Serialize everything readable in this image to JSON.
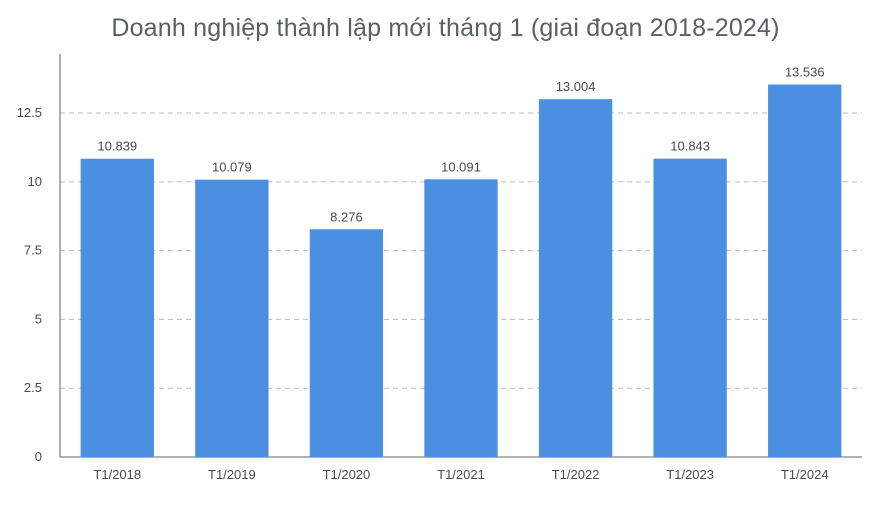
{
  "chart_data": {
    "type": "bar",
    "title": "Doanh nghiệp thành lập mới tháng 1 (giai đoạn 2018-2024)",
    "categories": [
      "T1/2018",
      "T1/2019",
      "T1/2020",
      "T1/2021",
      "T1/2022",
      "T1/2023",
      "T1/2024"
    ],
    "values": [
      10.839,
      10.079,
      8.276,
      10.091,
      13.004,
      10.843,
      13.536
    ],
    "value_labels": [
      "10.839",
      "10.079",
      "8.276",
      "10.091",
      "13.004",
      "10.843",
      "13.536"
    ],
    "ylim": [
      0,
      14.5
    ],
    "yticks": [
      0,
      2.5,
      5,
      7.5,
      10,
      12.5
    ],
    "ytick_labels": [
      "0",
      "2.5",
      "5",
      "7.5",
      "10",
      "12.5"
    ],
    "grid": true,
    "colors": {
      "bar": "#4a8fe0",
      "grid": "#bbbbbb",
      "axis": "#666666"
    }
  }
}
